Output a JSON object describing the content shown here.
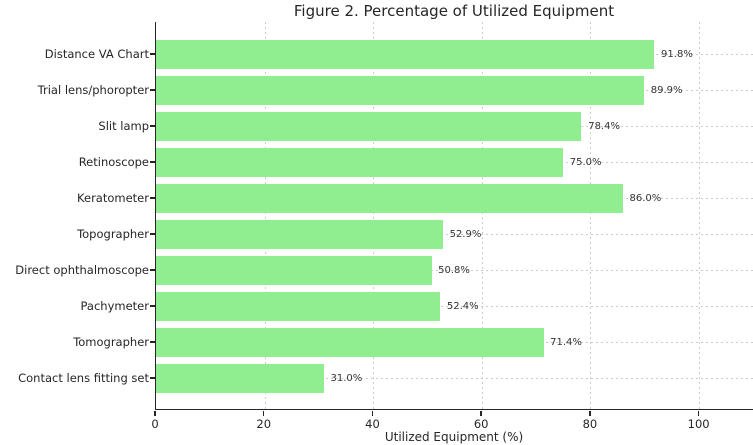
{
  "chart_data": {
    "type": "bar",
    "orientation": "horizontal",
    "title": "Figure 2. Percentage of Utilized Equipment",
    "xlabel": "Utilized Equipment (%)",
    "ylabel": "",
    "categories": [
      "Distance VA Chart",
      "Trial lens/phoropter",
      "Slit lamp",
      "Retinoscope",
      "Keratometer",
      "Topographer",
      "Direct ophthalmoscope",
      "Pachymeter",
      "Tomographer",
      "Contact lens fitting set"
    ],
    "values": [
      91.8,
      89.9,
      78.4,
      75.0,
      86.0,
      52.9,
      50.8,
      52.4,
      71.4,
      31.0
    ],
    "value_labels": [
      "91.8%",
      "89.9%",
      "78.4%",
      "75.0%",
      "86.0%",
      "52.9%",
      "50.8%",
      "52.4%",
      "71.4%",
      "31.0%"
    ],
    "x_ticks": [
      0,
      20,
      40,
      60,
      80,
      100
    ],
    "xlim": [
      0,
      110
    ],
    "grid": "dashed-both-axes",
    "legend_position": "none"
  },
  "colors": {
    "bar": "#90ee90",
    "grid": "#cccccc",
    "text": "#262626",
    "value_label": "#333333",
    "spine": "#262626",
    "background": "#ffffff"
  }
}
